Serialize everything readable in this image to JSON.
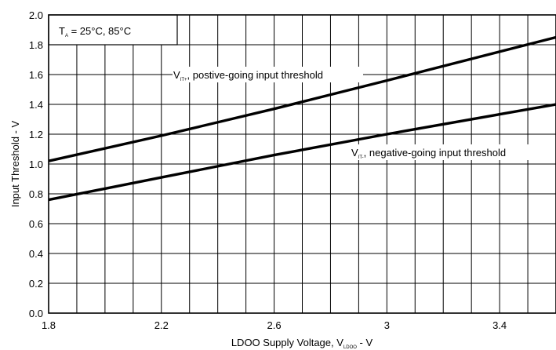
{
  "chart_data": {
    "type": "line",
    "title": "",
    "xlabel": {
      "main": "LDOO Supply Voltage, V",
      "sub": "LDOO",
      "suffix": " - V"
    },
    "ylabel": "Input Threshold - V",
    "xlim": [
      1.8,
      3.6
    ],
    "ylim": [
      0.0,
      2.0
    ],
    "x_ticks": [
      1.8,
      2.2,
      2.6,
      3.0,
      3.4
    ],
    "x_tick_labels": [
      "1.8",
      "2.2",
      "2.6",
      "3",
      "3.4"
    ],
    "y_ticks": [
      0.0,
      0.2,
      0.4,
      0.6,
      0.8,
      1.0,
      1.2,
      1.4,
      1.6,
      1.8,
      2.0
    ],
    "y_tick_labels": [
      "0.0",
      "0.2",
      "0.4",
      "0.6",
      "0.8",
      "1.0",
      "1.2",
      "1.4",
      "1.6",
      "1.8",
      "2.0"
    ],
    "x_grid_step": 0.1,
    "y_grid_step": 0.2,
    "grid": true,
    "legend": "none",
    "condition_label": {
      "main": "T",
      "sub": "A",
      "rest": " = 25°C, 85°C"
    },
    "series": [
      {
        "label": {
          "main": "V",
          "sub": "IT+",
          "rest": ", postive-going input threshold"
        },
        "x": [
          1.8,
          2.2,
          2.6,
          3.0,
          3.6
        ],
        "y": [
          1.02,
          1.19,
          1.37,
          1.56,
          1.85
        ]
      },
      {
        "label": {
          "main": "V",
          "sub": "IT-",
          "rest": ", negative-going input threshold"
        },
        "x": [
          1.8,
          2.2,
          2.6,
          3.0,
          3.6
        ],
        "y": [
          0.76,
          0.91,
          1.06,
          1.2,
          1.4
        ]
      }
    ]
  }
}
